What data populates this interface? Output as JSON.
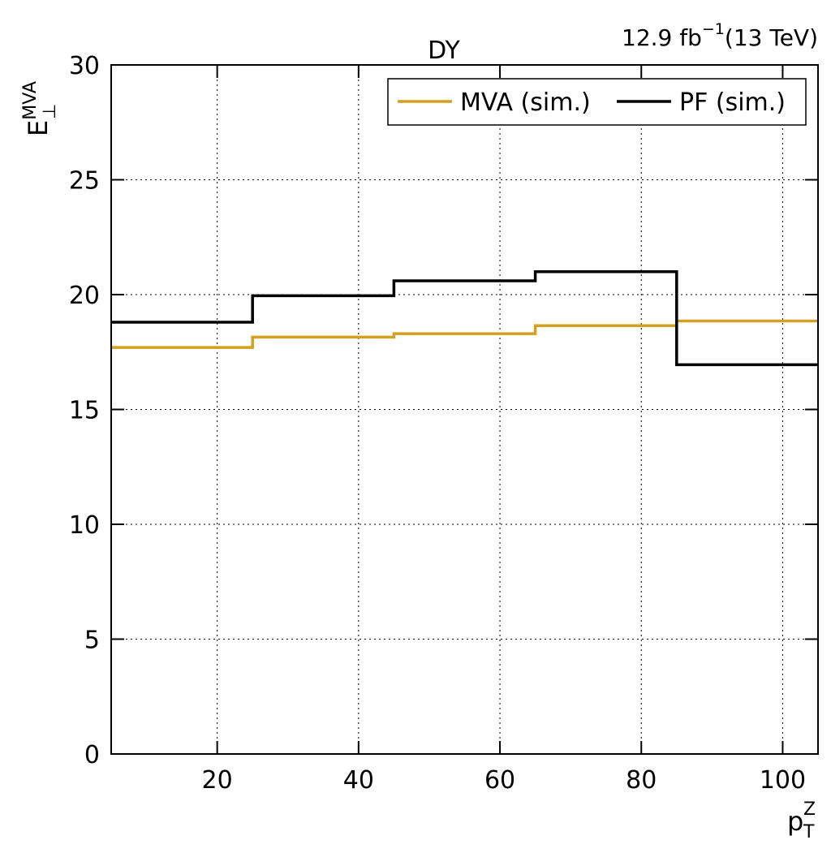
{
  "chart_data": {
    "type": "line",
    "title": "DY",
    "lumi_label": "12.9 fb",
    "lumi_exponent": "−1",
    "energy_label": "(13 TeV)",
    "xlabel": {
      "base": "p",
      "sub": "T",
      "sup": "Z"
    },
    "ylabel": {
      "base": "E",
      "sub": "⊥",
      "sup": "MVA"
    },
    "xlim": [
      5,
      105
    ],
    "ylim": [
      0,
      30
    ],
    "x_ticks": [
      20,
      40,
      60,
      80,
      100
    ],
    "y_ticks": [
      0,
      5,
      10,
      15,
      20,
      25,
      30
    ],
    "grid": true,
    "legend_position": "top-right",
    "bin_edges": [
      5,
      25,
      45,
      65,
      85,
      105
    ],
    "series": [
      {
        "name": "MVA (sim.)",
        "color": "#D4A020",
        "values": [
          17.7,
          18.15,
          18.3,
          18.65,
          18.85
        ]
      },
      {
        "name": "PF (sim.)",
        "color": "#000000",
        "values": [
          18.8,
          19.95,
          20.6,
          21.0,
          16.95
        ]
      }
    ]
  }
}
